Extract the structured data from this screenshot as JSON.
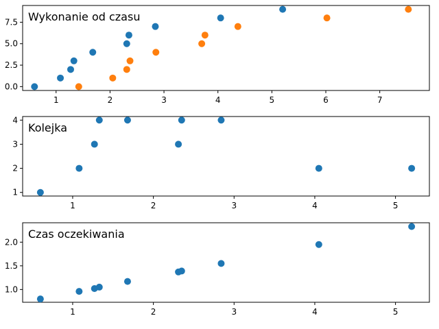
{
  "colors": {
    "series_1": "#1f77b4",
    "series_2": "#ff7f0e"
  },
  "chart_data": [
    {
      "type": "scatter",
      "title": "Wykonanie od czasu",
      "xlabel": "",
      "ylabel": "",
      "xlim": [
        0.38,
        7.92
      ],
      "ylim": [
        -0.45,
        9.45
      ],
      "xticks": [
        1,
        2,
        3,
        4,
        5,
        6,
        7
      ],
      "yticks": [
        0.0,
        2.5,
        5.0,
        7.5
      ],
      "ytick_labels": [
        "0.0",
        "2.5",
        "5.0",
        "7.5"
      ],
      "series": [
        {
          "color": "#1f77b4",
          "x": [
            0.6,
            1.08,
            1.27,
            1.33,
            1.68,
            2.31,
            2.35,
            2.84,
            4.05,
            5.2
          ],
          "y": [
            0,
            1,
            2,
            3,
            4,
            5,
            6,
            7,
            8,
            9
          ]
        },
        {
          "color": "#ff7f0e",
          "x": [
            1.42,
            2.05,
            2.31,
            2.37,
            2.85,
            3.7,
            3.76,
            4.37,
            6.02,
            7.53
          ],
          "y": [
            0,
            1,
            2,
            3,
            4,
            5,
            6,
            7,
            8,
            9
          ]
        }
      ]
    },
    {
      "type": "scatter",
      "title": "Kolejka",
      "xlabel": "",
      "ylabel": "",
      "xlim": [
        0.38,
        5.42
      ],
      "ylim": [
        0.85,
        4.15
      ],
      "xticks": [
        1,
        2,
        3,
        4,
        5
      ],
      "yticks": [
        1,
        2,
        3,
        4
      ],
      "ytick_labels": [
        "1",
        "2",
        "3",
        "4"
      ],
      "series": [
        {
          "color": "#1f77b4",
          "x": [
            0.6,
            1.08,
            1.27,
            1.33,
            1.68,
            2.31,
            2.35,
            2.84,
            4.05,
            5.2
          ],
          "y": [
            1,
            2,
            3,
            4,
            4,
            3,
            4,
            4,
            2,
            2
          ]
        }
      ]
    },
    {
      "type": "scatter",
      "title": "Czas oczekiwania",
      "xlabel": "",
      "ylabel": "",
      "xlim": [
        0.38,
        5.42
      ],
      "ylim": [
        0.73,
        2.41
      ],
      "xticks": [
        1,
        2,
        3,
        4,
        5
      ],
      "yticks": [
        1.0,
        1.5,
        2.0
      ],
      "ytick_labels": [
        "1.0",
        "1.5",
        "2.0"
      ],
      "series": [
        {
          "color": "#1f77b4",
          "x": [
            0.6,
            1.08,
            1.27,
            1.33,
            1.68,
            2.31,
            2.35,
            2.84,
            4.05,
            5.2
          ],
          "y": [
            0.8,
            0.96,
            1.02,
            1.05,
            1.17,
            1.37,
            1.39,
            1.55,
            1.95,
            2.33
          ]
        }
      ]
    }
  ]
}
